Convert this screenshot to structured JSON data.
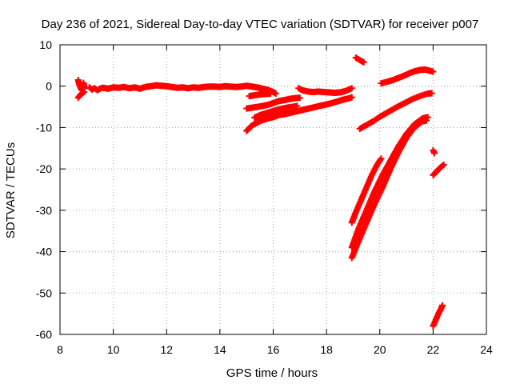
{
  "chart_data": {
    "type": "scatter",
    "title": "Day 236 of 2021, Sidereal Day-to-day VTEC variation (SDTVAR) for receiver p007",
    "xlabel": "GPS time / hours",
    "ylabel": "SDTVAR / TECUs",
    "xlim": [
      8,
      24
    ],
    "ylim": [
      -60,
      10
    ],
    "x_ticks": [
      "8",
      "10",
      "12",
      "14",
      "16",
      "18",
      "20",
      "22",
      "24"
    ],
    "y_ticks": [
      "10",
      "0",
      "-10",
      "-20",
      "-30",
      "-40",
      "-50",
      "-60"
    ],
    "grid": true,
    "marker": "plus",
    "series_color": "#ff0000",
    "series": [
      {
        "values": [
          [
            8.68,
            1.5
          ],
          [
            8.72,
            0.5
          ],
          [
            8.78,
            -0.5
          ],
          [
            8.82,
            -1.0
          ],
          [
            8.88,
            0.8
          ],
          [
            8.92,
            -0.5
          ]
        ]
      },
      {
        "values": [
          [
            8.68,
            -2.8
          ],
          [
            8.75,
            -2.2
          ],
          [
            8.82,
            -1.8
          ],
          [
            8.9,
            -1.4
          ]
        ]
      },
      {
        "values": [
          [
            9.1,
            -0.3
          ],
          [
            9.2,
            -0.8
          ],
          [
            9.3,
            -0.5
          ],
          [
            9.4,
            -1.0
          ],
          [
            9.5,
            -0.6
          ],
          [
            9.6,
            -0.4
          ],
          [
            9.8,
            -0.6
          ],
          [
            10.0,
            -0.3
          ],
          [
            10.2,
            -0.4
          ],
          [
            10.4,
            -0.2
          ],
          [
            10.6,
            -0.5
          ],
          [
            10.8,
            -0.3
          ],
          [
            11.0,
            -0.6
          ],
          [
            11.2,
            -0.2
          ],
          [
            11.4,
            0.0
          ],
          [
            11.6,
            0.2
          ],
          [
            11.8,
            0.1
          ],
          [
            12.0,
            0.0
          ],
          [
            12.2,
            -0.2
          ],
          [
            12.4,
            -0.4
          ],
          [
            12.6,
            -0.3
          ],
          [
            12.8,
            -0.5
          ],
          [
            13.0,
            -0.3
          ],
          [
            13.2,
            -0.4
          ],
          [
            13.4,
            -0.2
          ],
          [
            13.6,
            -0.1
          ],
          [
            13.8,
            -0.1
          ],
          [
            14.0,
            -0.2
          ],
          [
            14.2,
            0.0
          ],
          [
            14.4,
            -0.1
          ],
          [
            14.6,
            -0.2
          ],
          [
            14.8,
            -0.1
          ],
          [
            15.0,
            0.1
          ],
          [
            15.2,
            -0.1
          ],
          [
            15.4,
            -0.3
          ],
          [
            15.6,
            -0.6
          ],
          [
            15.8,
            -0.9
          ],
          [
            16.0,
            -1.4
          ],
          [
            16.1,
            -1.8
          ]
        ]
      },
      {
        "values": [
          [
            15.0,
            -10.8
          ],
          [
            15.1,
            -10.2
          ],
          [
            15.2,
            -9.5
          ],
          [
            15.4,
            -8.8
          ],
          [
            15.6,
            -8.2
          ],
          [
            15.8,
            -7.8
          ],
          [
            16.0,
            -7.5
          ],
          [
            16.2,
            -7.0
          ],
          [
            16.4,
            -6.8
          ],
          [
            16.6,
            -6.5
          ],
          [
            16.8,
            -6.2
          ],
          [
            17.0,
            -5.9
          ],
          [
            17.2,
            -5.6
          ],
          [
            17.4,
            -5.3
          ],
          [
            17.6,
            -5.0
          ],
          [
            17.8,
            -4.7
          ],
          [
            18.0,
            -4.4
          ],
          [
            18.2,
            -4.1
          ],
          [
            18.4,
            -3.7
          ],
          [
            18.6,
            -3.3
          ],
          [
            18.8,
            -3.0
          ],
          [
            18.95,
            -2.7
          ]
        ]
      },
      {
        "values": [
          [
            15.3,
            -7.6
          ],
          [
            15.5,
            -7.0
          ],
          [
            15.7,
            -6.6
          ],
          [
            15.9,
            -6.2
          ],
          [
            16.1,
            -5.8
          ],
          [
            16.3,
            -5.5
          ],
          [
            16.5,
            -5.2
          ],
          [
            16.7,
            -5.0
          ],
          [
            16.9,
            -4.8
          ]
        ]
      },
      {
        "values": [
          [
            15.0,
            -5.4
          ],
          [
            15.2,
            -5.2
          ],
          [
            15.4,
            -5.0
          ],
          [
            15.6,
            -4.8
          ],
          [
            15.8,
            -4.5
          ],
          [
            16.0,
            -4.1
          ],
          [
            16.2,
            -3.6
          ],
          [
            16.4,
            -3.4
          ],
          [
            16.6,
            -3.1
          ],
          [
            16.8,
            -2.9
          ],
          [
            17.0,
            -2.8
          ]
        ]
      },
      {
        "values": [
          [
            15.1,
            -2.4
          ],
          [
            15.3,
            -2.2
          ],
          [
            15.5,
            -2.0
          ],
          [
            15.7,
            -1.9
          ],
          [
            15.9,
            -1.8
          ]
        ]
      },
      {
        "values": [
          [
            16.95,
            -0.5
          ],
          [
            17.1,
            -1.0
          ],
          [
            17.3,
            -1.3
          ],
          [
            17.5,
            -1.4
          ],
          [
            17.7,
            -1.3
          ],
          [
            17.9,
            -1.4
          ],
          [
            18.1,
            -1.5
          ],
          [
            18.3,
            -1.6
          ],
          [
            18.5,
            -1.5
          ],
          [
            18.7,
            -1.2
          ],
          [
            18.85,
            -0.8
          ],
          [
            18.95,
            -0.5
          ]
        ]
      },
      {
        "values": [
          [
            19.1,
            6.9
          ],
          [
            19.2,
            6.5
          ],
          [
            19.3,
            6.1
          ],
          [
            19.4,
            5.8
          ]
        ]
      },
      {
        "values": [
          [
            19.25,
            -10.3
          ],
          [
            19.5,
            -9.4
          ],
          [
            19.8,
            -8.3
          ],
          [
            20.0,
            -7.4
          ],
          [
            20.3,
            -6.3
          ],
          [
            20.6,
            -5.2
          ],
          [
            20.9,
            -4.2
          ],
          [
            21.2,
            -3.2
          ],
          [
            21.5,
            -2.4
          ],
          [
            21.8,
            -1.8
          ],
          [
            21.95,
            -1.7
          ]
        ]
      },
      {
        "values": [
          [
            20.05,
            0.7
          ],
          [
            20.3,
            1.1
          ],
          [
            20.5,
            1.5
          ],
          [
            20.7,
            2.0
          ],
          [
            20.9,
            2.5
          ],
          [
            21.1,
            3.1
          ],
          [
            21.3,
            3.6
          ],
          [
            21.5,
            3.9
          ],
          [
            21.7,
            4.0
          ],
          [
            21.9,
            3.7
          ],
          [
            22.0,
            3.5
          ]
        ]
      },
      {
        "values": [
          [
            18.95,
            -33.0
          ],
          [
            19.1,
            -30.5
          ],
          [
            19.3,
            -27.5
          ],
          [
            19.5,
            -24.5
          ],
          [
            19.7,
            -21.5
          ],
          [
            19.9,
            -19.0
          ],
          [
            20.05,
            -17.5
          ]
        ]
      },
      {
        "values": [
          [
            18.95,
            -41.5
          ],
          [
            19.2,
            -37.5
          ],
          [
            19.5,
            -33.0
          ],
          [
            19.8,
            -28.5
          ],
          [
            20.1,
            -24.5
          ],
          [
            20.4,
            -20.0
          ],
          [
            20.7,
            -16.0
          ],
          [
            21.0,
            -12.5
          ],
          [
            21.3,
            -10.0
          ],
          [
            21.6,
            -8.5
          ],
          [
            21.75,
            -8.3
          ]
        ]
      },
      {
        "values": [
          [
            18.95,
            -39.0
          ],
          [
            19.2,
            -34.5
          ],
          [
            19.5,
            -30.0
          ],
          [
            19.8,
            -25.5
          ],
          [
            20.1,
            -21.5
          ],
          [
            20.4,
            -18.0
          ],
          [
            20.7,
            -14.5
          ],
          [
            21.0,
            -11.5
          ],
          [
            21.3,
            -9.2
          ],
          [
            21.6,
            -7.8
          ],
          [
            21.8,
            -7.5
          ]
        ]
      },
      {
        "values": [
          [
            22.0,
            -15.5
          ],
          [
            22.05,
            -16.2
          ]
        ]
      },
      {
        "values": [
          [
            22.0,
            -21.5
          ],
          [
            22.15,
            -20.5
          ],
          [
            22.3,
            -19.5
          ],
          [
            22.4,
            -19.0
          ]
        ]
      },
      {
        "values": [
          [
            22.0,
            -58.0
          ],
          [
            22.1,
            -56.5
          ],
          [
            22.2,
            -55.0
          ],
          [
            22.3,
            -53.8
          ],
          [
            22.35,
            -53.0
          ]
        ]
      }
    ]
  }
}
